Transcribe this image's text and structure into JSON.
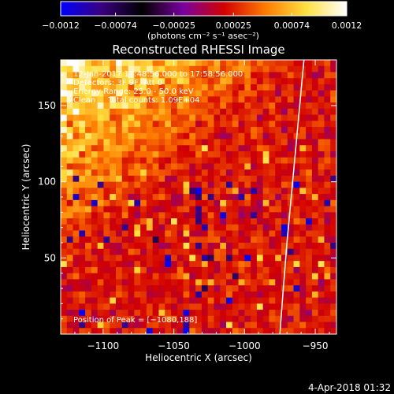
{
  "chart_data": {
    "type": "heatmap",
    "title": "Reconstructed RHESSI Image",
    "xlabel": "Heliocentric X (arcsec)",
    "ylabel": "Heliocentric Y (arcsec)",
    "xlim": [
      -1130,
      -935
    ],
    "ylim": [
      0,
      180
    ],
    "x_ticks": [
      -1100,
      -1050,
      -1000,
      -950
    ],
    "x_tick_labels": [
      "−1100",
      "−1050",
      "−1000",
      "−950"
    ],
    "y_ticks": [
      50,
      100,
      150
    ],
    "y_tick_labels": [
      "50",
      "100",
      "150"
    ],
    "colorbar": {
      "min": -0.0012,
      "max": 0.0012,
      "ticks": [
        -0.0012,
        -0.00074,
        -0.00025,
        0.00025,
        0.00074,
        0.0012
      ],
      "tick_labels": [
        "−0.0012",
        "−0.00074",
        "−0.00025",
        "0.00025",
        "0.00074",
        "0.0012"
      ],
      "unit_label": "(photons cm⁻² s⁻¹ asec⁻²)",
      "colors": [
        "#0000ff",
        "#3a007f",
        "#000000",
        "#7a00a0",
        "#d20000",
        "#ff7a00",
        "#ffe040",
        "#ffffff"
      ]
    },
    "annotations": {
      "time_range": "12-Jan-2017 17:48:56.000 to 17:58:56.000",
      "detectors": "Detectors: 3F 9F, Att 0",
      "energy_range": "Energy Range: 25.0 - 50.0 keV",
      "algorithm": "Clean     Total counts: 1.09E+04",
      "peak": "Position of Peak = [−1080,188]"
    },
    "limb_curve": [
      [
        -958,
        180
      ],
      [
        -962,
        140
      ],
      [
        -966,
        100
      ],
      [
        -970,
        60
      ],
      [
        -973,
        25
      ],
      [
        -975,
        0
      ]
    ],
    "colors": {
      "background": "#000000",
      "text": "#ffffff",
      "limb": "#ffffff"
    }
  },
  "footer": {
    "date": "4-Apr-2018 01:32"
  }
}
